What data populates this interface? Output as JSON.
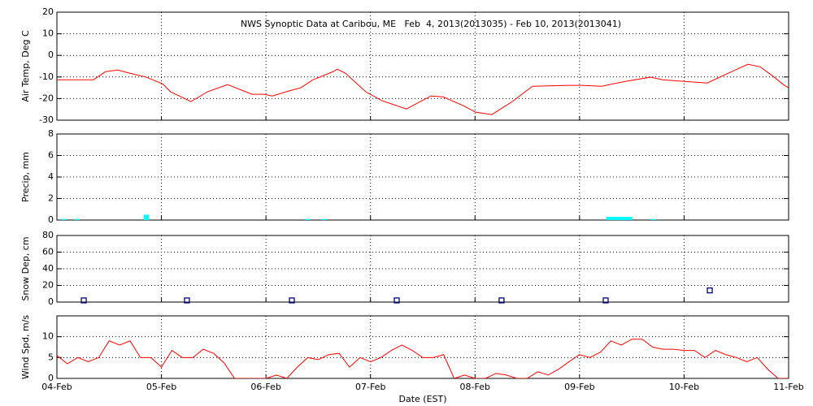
{
  "chart_data": [
    {
      "type": "line",
      "title": "NWS Synoptic Data at Caribou, ME   Feb  4, 2013(2013035) - Feb 10, 2013(2013041)",
      "ylabel": "Air Temp, Deg C",
      "xlim": [
        35,
        42
      ],
      "xticks": [
        35,
        36,
        37,
        38,
        39,
        40,
        41,
        42
      ],
      "ylim": [
        -30,
        20
      ],
      "yticks": [
        -30,
        -20,
        -10,
        0,
        10,
        20
      ],
      "grid": true,
      "x": [
        35.0,
        35.35,
        35.467,
        35.583,
        35.7,
        35.856,
        36.011,
        36.089,
        36.283,
        36.439,
        36.633,
        36.867,
        36.983,
        37.061,
        37.217,
        37.333,
        37.45,
        37.644,
        37.683,
        37.761,
        37.956,
        38.111,
        38.344,
        38.578,
        38.694,
        38.889,
        39.006,
        39.161,
        39.356,
        39.55,
        39.9,
        40.017,
        40.211,
        40.444,
        40.678,
        40.794,
        40.989,
        41.222,
        41.456,
        41.611,
        41.728,
        41.844,
        41.961,
        42.0
      ],
      "series": [
        {
          "name": "Air Temp",
          "color": "#ff0000",
          "values": [
            -11.3,
            -11.3,
            -7.5,
            -6.8,
            -8.3,
            -10.1,
            -13.2,
            -16.9,
            -21.4,
            -16.9,
            -13.5,
            -18,
            -18,
            -18.8,
            -16.5,
            -15,
            -11.3,
            -7.5,
            -6.4,
            -8.3,
            -16.9,
            -21,
            -24.8,
            -18.8,
            -19.2,
            -23.3,
            -26.3,
            -27.4,
            -21.4,
            -14.3,
            -13.9,
            -13.9,
            -14.3,
            -12,
            -10.1,
            -11.3,
            -12,
            -12.8,
            -7.5,
            -4.1,
            -5.3,
            -9.4,
            -13.9,
            -15
          ]
        }
      ]
    },
    {
      "type": "bar",
      "ylabel": "Precip, mm",
      "xlim": [
        35,
        42
      ],
      "xticks": [
        35,
        36,
        37,
        38,
        39,
        40,
        41,
        42
      ],
      "ylim": [
        0,
        8
      ],
      "yticks": [
        0,
        2,
        4,
        6,
        8
      ],
      "grid": true,
      "x": [
        35.066,
        35.19,
        35.856,
        37.4,
        37.555,
        40.28,
        40.33,
        40.38,
        40.43,
        40.48,
        40.705
      ],
      "series": [
        {
          "name": "Precip",
          "color": "#00ffff",
          "values": [
            0.1,
            0.1,
            0.5,
            0.1,
            0.1,
            0.3,
            0.3,
            0.3,
            0.3,
            0.3,
            0.1
          ]
        }
      ]
    },
    {
      "type": "scatter",
      "ylabel": "Snow Dep, cm",
      "xlim": [
        35,
        42
      ],
      "xticks": [
        35,
        36,
        37,
        38,
        39,
        40,
        41,
        42
      ],
      "ylim": [
        0,
        80
      ],
      "yticks": [
        0,
        20,
        40,
        60,
        80
      ],
      "grid": true,
      "x": [
        35.257,
        36.244,
        37.248,
        38.251,
        39.254,
        40.25,
        41.246
      ],
      "series": [
        {
          "name": "Snow Depth",
          "color": "#000080",
          "values": [
            2,
            2,
            2,
            2,
            2,
            2,
            14
          ]
        }
      ]
    },
    {
      "type": "line",
      "ylabel": "Wind Spd, m/s",
      "xlabel": "Date (EST)",
      "xlim": [
        35,
        42
      ],
      "xticks": [
        {
          "value": 35,
          "label": "04-Feb"
        },
        {
          "value": 36,
          "label": "05-Feb"
        },
        {
          "value": 37,
          "label": "06-Feb"
        },
        {
          "value": 38,
          "label": "07-Feb"
        },
        {
          "value": 39,
          "label": "08-Feb"
        },
        {
          "value": 40,
          "label": "09-Feb"
        },
        {
          "value": 41,
          "label": "10-Feb"
        },
        {
          "value": 42,
          "label": "11-Feb"
        }
      ],
      "ylim": [
        0,
        15
      ],
      "yticks": [
        0,
        5,
        10
      ],
      "grid": true,
      "x": [
        35.0,
        35.1,
        35.2,
        35.3,
        35.4,
        35.5,
        35.6,
        35.7,
        35.8,
        35.9,
        36.0,
        36.1,
        36.2,
        36.3,
        36.4,
        36.5,
        36.6,
        36.7,
        36.8,
        36.9,
        37.0,
        37.1,
        37.2,
        37.3,
        37.4,
        37.5,
        37.6,
        37.7,
        37.8,
        37.9,
        38.0,
        38.1,
        38.2,
        38.3,
        38.4,
        38.5,
        38.6,
        38.7,
        38.8,
        38.9,
        39.0,
        39.1,
        39.2,
        39.3,
        39.4,
        39.5,
        39.6,
        39.7,
        39.8,
        39.9,
        40.0,
        40.1,
        40.2,
        40.3,
        40.4,
        40.5,
        40.6,
        40.7,
        40.8,
        40.9,
        41.0,
        41.1,
        41.2,
        41.3,
        41.4,
        41.5,
        41.6,
        41.7,
        41.8,
        41.9,
        42.0
      ],
      "series": [
        {
          "name": "Wind Speed",
          "color": "#ff0000",
          "values": [
            5.5,
            3.5,
            5,
            4,
            5,
            9,
            8,
            9,
            5,
            5,
            2.7,
            6.7,
            5,
            5,
            7,
            6,
            3.7,
            0,
            0,
            0,
            0,
            0.8,
            0,
            2.7,
            5,
            4.5,
            5.7,
            6,
            2.7,
            5,
            4,
            5,
            6.7,
            8,
            6.7,
            5,
            5,
            5.7,
            0,
            0.8,
            0,
            0,
            1.2,
            0.8,
            0,
            0,
            1.6,
            0.8,
            2.2,
            4,
            5.7,
            5,
            6.3,
            9,
            8,
            9.4,
            9.4,
            7.5,
            7,
            7,
            6.7,
            6.7,
            5,
            6.7,
            5.7,
            5,
            4,
            5,
            2.2,
            0,
            0
          ]
        }
      ]
    }
  ]
}
